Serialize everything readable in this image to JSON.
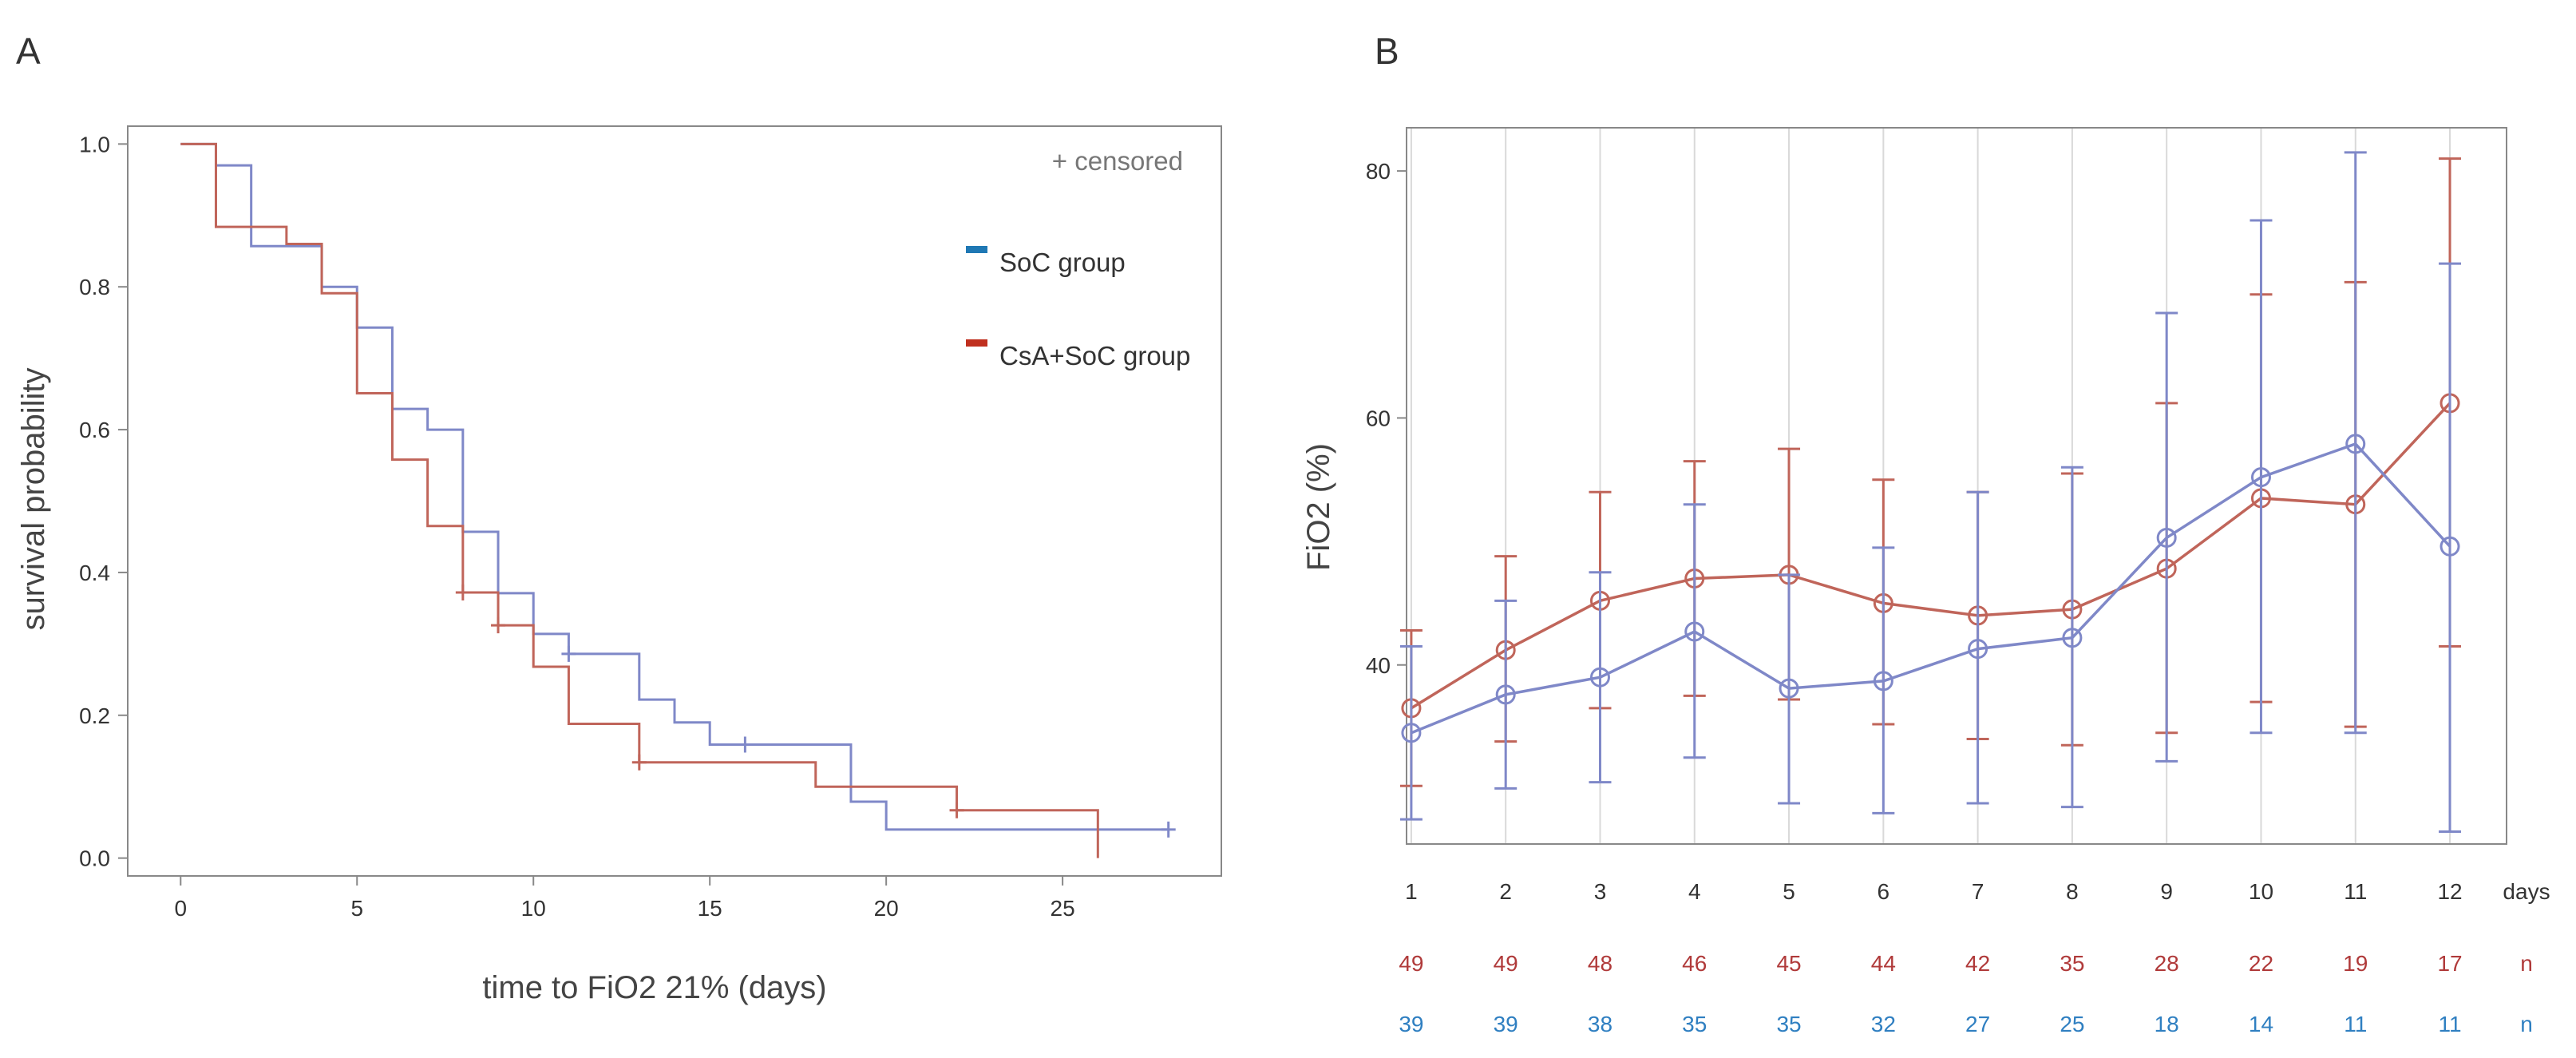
{
  "colors": {
    "soc": "#7F88C8",
    "csa": "#C0655A",
    "csa_n": "#B03A3A",
    "soc_n": "#2F7FC1",
    "legend_soc": "#1F78B4",
    "legend_csa": "#C0301F",
    "axis": "#555555",
    "text": "#333333",
    "grid": "#D9D9D9"
  },
  "chart_data": [
    {
      "panel_label": "A",
      "type": "line",
      "title": "",
      "xlabel": "time to FiO2 21% (days)",
      "ylabel": "survival probability",
      "xlim": [
        -1.5,
        29.5
      ],
      "ylim": [
        -0.025,
        1.025
      ],
      "x_ticks": [
        0,
        5,
        10,
        15,
        20,
        25
      ],
      "x_tick_labels": [
        "0",
        "5",
        "10",
        "15",
        "20",
        "25"
      ],
      "y_ticks": [
        0.0,
        0.2,
        0.4,
        0.6,
        0.8,
        1.0
      ],
      "y_tick_labels": [
        "0.0",
        "0.2",
        "0.4",
        "0.6",
        "0.8",
        "1.0"
      ],
      "grid": false,
      "censored_label": "+ censored",
      "legend": [
        {
          "label": "SoC group",
          "series": "soc"
        },
        {
          "label": "CsA+SoC group",
          "series": "csa"
        }
      ],
      "series": [
        {
          "name": "SoC group",
          "key": "soc",
          "style": "step",
          "x": [
            0,
            1,
            2,
            4,
            5,
            6,
            7,
            8,
            9,
            10,
            11,
            13,
            14,
            15,
            19,
            20,
            28
          ],
          "y": [
            1.0,
            0.97,
            0.857,
            0.8,
            0.743,
            0.629,
            0.6,
            0.457,
            0.371,
            0.314,
            0.286,
            0.222,
            0.19,
            0.159,
            0.079,
            0.04,
            0.04
          ],
          "censored": [
            {
              "x": 11,
              "y": 0.286
            },
            {
              "x": 16,
              "y": 0.159
            },
            {
              "x": 28,
              "y": 0.04
            }
          ]
        },
        {
          "name": "CsA+SoC group",
          "key": "csa",
          "style": "step",
          "x": [
            0,
            1,
            3,
            4,
            5,
            6,
            7,
            8,
            9,
            10,
            11,
            13,
            18,
            22,
            26,
            26
          ],
          "y": [
            1.0,
            0.884,
            0.86,
            0.791,
            0.651,
            0.558,
            0.465,
            0.372,
            0.326,
            0.268,
            0.188,
            0.134,
            0.1,
            0.067,
            0.067,
            0.0
          ],
          "censored": [
            {
              "x": 8,
              "y": 0.372
            },
            {
              "x": 9,
              "y": 0.326
            },
            {
              "x": 13,
              "y": 0.134
            },
            {
              "x": 22,
              "y": 0.067
            }
          ]
        }
      ]
    },
    {
      "panel_label": "B",
      "type": "line",
      "title": "",
      "xlabel": "",
      "ylabel": "FiO2 (%)",
      "xlim": [
        0.95,
        12.6
      ],
      "ylim": [
        25.5,
        83.5
      ],
      "x_ticks": [
        1,
        2,
        3,
        4,
        5,
        6,
        7,
        8,
        9,
        10,
        11,
        12
      ],
      "x_tick_labels": [
        "1",
        "2",
        "3",
        "4",
        "5",
        "6",
        "7",
        "8",
        "9",
        "10",
        "11",
        "12"
      ],
      "days_label": "days",
      "y_ticks": [
        40,
        60,
        80
      ],
      "y_tick_labels": [
        "40",
        "60",
        "80"
      ],
      "grid": "vertical",
      "series": [
        {
          "name": "CsA+SoC group",
          "key": "csa",
          "x": [
            1,
            2,
            3,
            4,
            5,
            6,
            7,
            8,
            9,
            10,
            11,
            12
          ],
          "y": [
            36.5,
            41.2,
            45.2,
            47.0,
            47.3,
            45.0,
            44.0,
            44.5,
            47.8,
            53.5,
            53.0,
            61.2
          ],
          "err_low": [
            30.2,
            33.8,
            36.5,
            37.5,
            37.2,
            35.2,
            34.0,
            33.5,
            34.5,
            37.0,
            35.0,
            41.5
          ],
          "err_high": [
            42.8,
            48.8,
            54.0,
            56.5,
            57.5,
            55.0,
            54.0,
            55.5,
            61.2,
            70.0,
            71.0,
            81.0
          ],
          "n": [
            49,
            49,
            48,
            46,
            45,
            44,
            42,
            35,
            28,
            22,
            19,
            17
          ],
          "n_label": "n"
        },
        {
          "name": "SoC group",
          "key": "soc",
          "x": [
            1,
            2,
            3,
            4,
            5,
            6,
            7,
            8,
            9,
            10,
            11,
            12
          ],
          "y": [
            34.5,
            37.6,
            39.0,
            42.7,
            38.1,
            38.7,
            41.3,
            42.2,
            50.3,
            55.2,
            57.9,
            49.6
          ],
          "err_low": [
            27.5,
            30.0,
            30.5,
            32.5,
            28.8,
            28.0,
            28.8,
            28.5,
            32.2,
            34.5,
            34.5,
            26.5
          ],
          "err_high": [
            41.5,
            45.2,
            47.5,
            53.0,
            47.3,
            49.5,
            54.0,
            56.0,
            68.5,
            76.0,
            81.5,
            72.5
          ],
          "n": [
            39,
            39,
            38,
            35,
            35,
            32,
            27,
            25,
            18,
            14,
            11,
            11
          ],
          "n_label": "n"
        }
      ]
    }
  ]
}
